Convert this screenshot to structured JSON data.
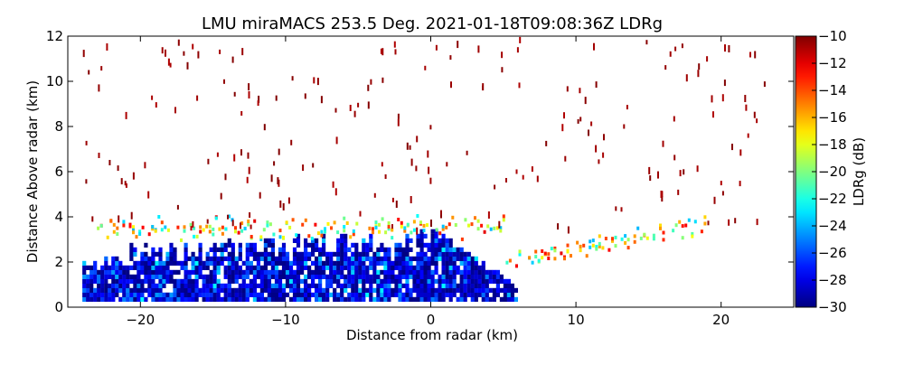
{
  "chart_data": {
    "type": "heatmap",
    "title": "LMU miraMACS 253.5 Deg. 2021-01-18T09:08:36Z  LDRg",
    "xlabel": "Distance from radar (km)",
    "ylabel": "Distance Above radar  (km)",
    "xlim": [
      -25,
      25
    ],
    "ylim": [
      0,
      12
    ],
    "x_ticks": [
      -20,
      -10,
      0,
      10,
      20
    ],
    "x_tick_labels": [
      "−20",
      "−10",
      "0",
      "10",
      "20"
    ],
    "y_ticks": [
      0,
      2,
      4,
      6,
      8,
      10,
      12
    ],
    "y_tick_labels": [
      "0",
      "2",
      "4",
      "6",
      "8",
      "10",
      "12"
    ],
    "grid": false,
    "colorbar": {
      "label": "LDRg (dB)",
      "colormap": "jet",
      "range": [
        -30,
        -10
      ],
      "ticks": [
        -30,
        -28,
        -26,
        -24,
        -22,
        -20,
        -18,
        -16,
        -14,
        -12,
        -10
      ],
      "tick_labels": [
        "−30",
        "−28",
        "−26",
        "−24",
        "−22",
        "−20",
        "−18",
        "−16",
        "−14",
        "−12",
        "−10"
      ]
    },
    "regions": {
      "dense_low_layer": {
        "x_range": [
          -24,
          6
        ],
        "y_range": [
          0,
          2.8
        ],
        "value_range_db": [
          -30,
          -26
        ]
      },
      "melting_layer_edge": {
        "x_range": [
          -23,
          19
        ],
        "y_range": [
          2.5,
          4
        ],
        "value_range_db": [
          -24,
          -12
        ]
      },
      "sparse_upper_returns": {
        "x_range": [
          -24,
          23
        ],
        "y_range": [
          3.5,
          12
        ],
        "value_range_db": [
          -11,
          -10
        ]
      }
    }
  }
}
